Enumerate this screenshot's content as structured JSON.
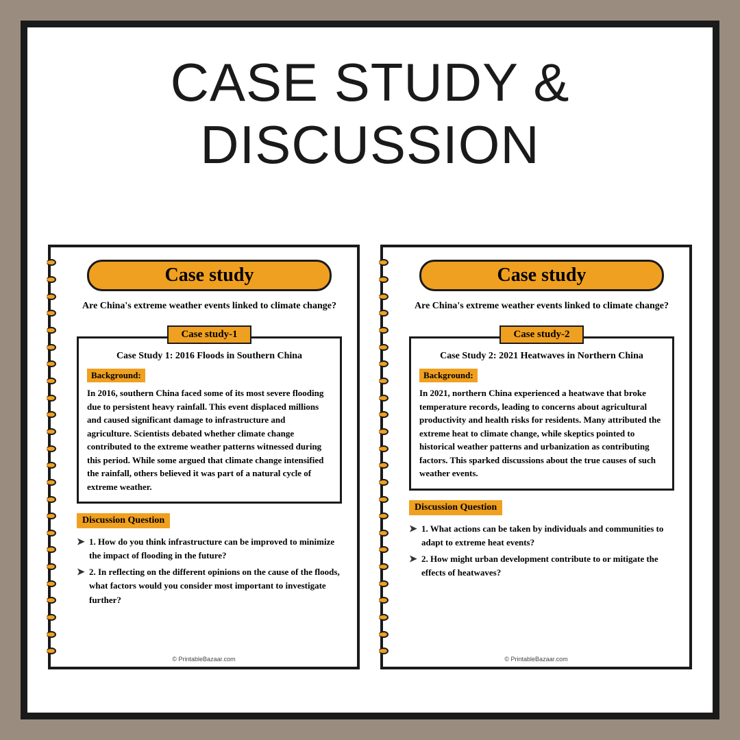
{
  "main_title": "Case study & Discussion",
  "common": {
    "pill_title": "Case study",
    "question": "Are China's extreme weather events linked to climate change?",
    "background_label": "Background:",
    "discussion_label": "Discussion Question",
    "footer": "© PrintableBazaar.com",
    "arrow_glyph": "➤",
    "colors": {
      "page_bg": "#ffffff",
      "border": "#1a1a1a",
      "accent": "#f0a020",
      "outer_bg": "#9a8d80"
    }
  },
  "pages": [
    {
      "cs_label": "Case study-1",
      "cs_heading": "Case Study 1: 2016 Floods in Southern China",
      "background_text": "In 2016, southern China faced some of its most severe flooding due to persistent heavy rainfall. This event displaced millions and caused significant damage to infrastructure and agriculture. Scientists debated whether climate change contributed to the extreme weather patterns witnessed during this period. While some argued that climate change intensified the rainfall, others believed it was part of a natural cycle of extreme weather.",
      "questions": [
        "1. How do you think infrastructure can be improved to minimize the impact of flooding in the future?",
        "2. In reflecting on the different opinions on the cause of the floods, what factors would you consider most important to investigate further?"
      ]
    },
    {
      "cs_label": "Case study-2",
      "cs_heading": "Case Study 2: 2021 Heatwaves in Northern China",
      "background_text": "In 2021, northern China experienced a heatwave that broke temperature records, leading to concerns about agricultural productivity and health risks for residents. Many attributed the extreme heat to climate change, while skeptics pointed to historical weather patterns and urbanization as contributing factors. This sparked discussions about the true causes of such weather events.",
      "questions": [
        "1. What actions can be taken by individuals and communities to adapt to extreme heat events?",
        "2. How might urban development contribute to or mitigate the effects of heatwaves?"
      ]
    }
  ]
}
